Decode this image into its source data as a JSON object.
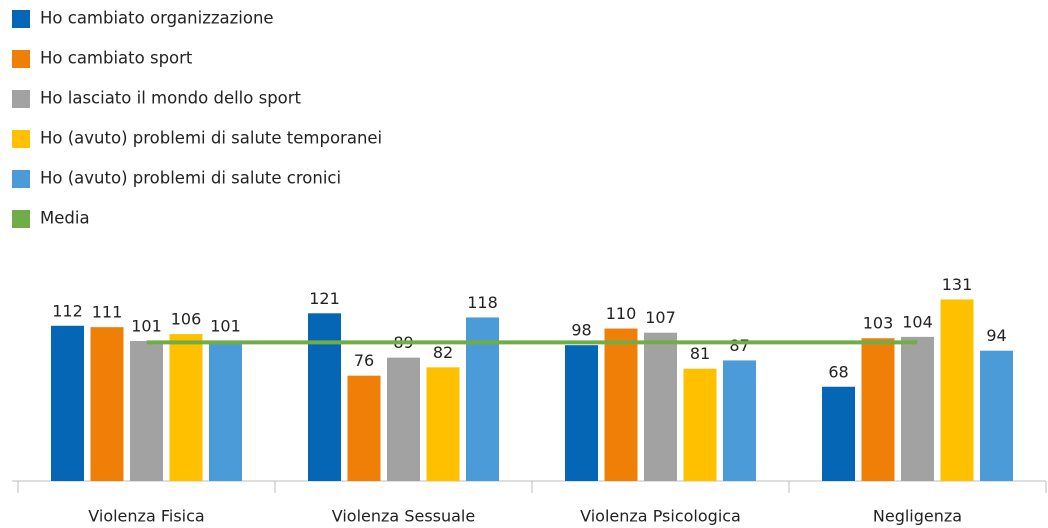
{
  "chart_data": {
    "type": "bar",
    "categories": [
      "Violenza Fisica",
      "Violenza Sessuale",
      "Violenza Psicologica",
      "Negligenza"
    ],
    "series": [
      {
        "name": "Ho cambiato organizzazione",
        "color": "#0566b5",
        "values": [
          112,
          121,
          98,
          68
        ]
      },
      {
        "name": "Ho cambiato sport",
        "color": "#f07f08",
        "values": [
          111,
          76,
          110,
          103
        ]
      },
      {
        "name": "Ho lasciato il mondo dello sport",
        "color": "#a2a2a2",
        "values": [
          101,
          89,
          107,
          104
        ]
      },
      {
        "name": "Ho (avuto) problemi di salute temporanei",
        "color": "#ffc000",
        "values": [
          106,
          82,
          81,
          131
        ]
      },
      {
        "name": "Ho (avuto) problemi di salute cronici",
        "color": "#4b9bd8",
        "values": [
          101,
          118,
          87,
          94
        ]
      },
      {
        "name": "Media",
        "color": "#70ad47",
        "type": "line",
        "values": [
          100,
          100,
          100,
          100
        ]
      }
    ],
    "ylim": [
      0,
      140
    ],
    "legend": "top-left"
  }
}
